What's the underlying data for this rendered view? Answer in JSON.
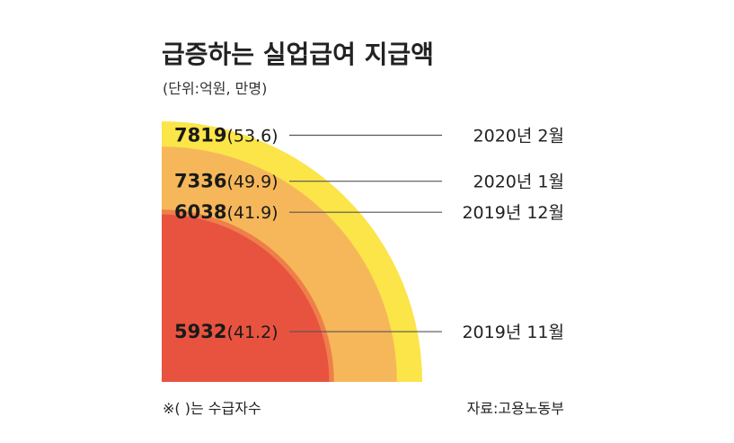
{
  "title": "급증하는 실업급여 지급액",
  "subtitle": "(단위:억원, 만명)",
  "footnote": "※( )는 수급자수",
  "source": "자료:고용노동부",
  "chart_data": {
    "type": "area",
    "title": "급증하는 실업급여 지급액",
    "subtitle": "(단위:억원, 만명)",
    "units": [
      "억원",
      "만명"
    ],
    "series": [
      {
        "period": "2019년 11월",
        "amount": 5932,
        "recipients": 41.2,
        "amount_label": "5932",
        "recipients_label": "(41.2)",
        "color": "#e8533f"
      },
      {
        "period": "2019년 12월",
        "amount": 6038,
        "recipients": 41.9,
        "amount_label": "6038",
        "recipients_label": "(41.9)",
        "color": "#ef7f4a"
      },
      {
        "period": "2020년 1월",
        "amount": 7336,
        "recipients": 49.9,
        "amount_label": "7336",
        "recipients_label": "(49.9)",
        "color": "#f6b75a"
      },
      {
        "period": "2020년 2월",
        "amount": 7819,
        "recipients": 53.6,
        "amount_label": "7819",
        "recipients_label": "(53.6)",
        "color": "#fbe548"
      }
    ]
  }
}
